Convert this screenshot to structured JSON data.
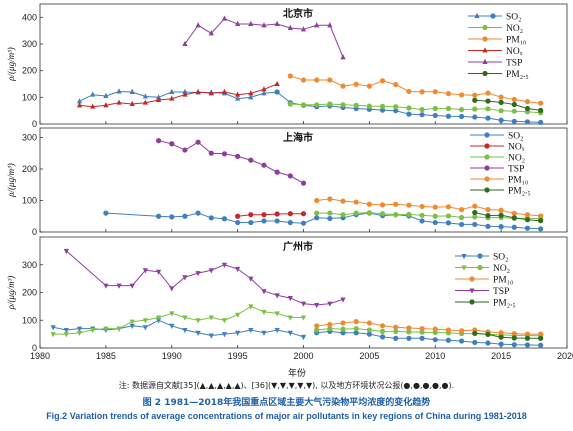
{
  "figure": {
    "xlabel": "年份",
    "note": "注: 数据源自文献[35](▲,▲,▲,▲,▲)、[36](▼,▼,▼,▼,▼), 以及地方环境状况公报(●,●,●,●,●).",
    "caption_zh": "图 2 1981—2018年我国重点区域主要大气污染物平均浓度的变化趋势",
    "caption_en": "Fig.2 Variation trends of average concentrations of major air pollutants in key regions of China during 1981-2018",
    "ylabel": "ρ/(μg/m³)",
    "x_ticks": [
      "1980",
      "1985",
      "1990",
      "1995",
      "2000",
      "2005",
      "2010",
      "2015",
      "2020"
    ],
    "colors": {
      "SO2": "#3f7fbf",
      "NOx": "#c62828",
      "NO2": "#7bbf44",
      "PM10": "#ef8a32",
      "TSP": "#8e3f9e",
      "PM25": "#2e6b1f"
    }
  },
  "chart_data": [
    {
      "type": "line",
      "title": "北京市",
      "xlim": [
        1980,
        2020
      ],
      "ylim": [
        0,
        450
      ],
      "y_ticks": [
        "0",
        "100",
        "200",
        "300",
        "400"
      ],
      "legend": [
        "SO₂",
        "NO₂",
        "PM₁₀",
        "NOₓ",
        "TSP",
        "PM₂.₅"
      ],
      "series": [
        {
          "name": "SO₂",
          "color": "#3f7fbf",
          "marker": "triangle-up",
          "x": [
            1983,
            1984,
            1985,
            1986,
            1987,
            1988,
            1989,
            1990,
            1991,
            1992,
            1993,
            1994,
            1995,
            1996,
            1997,
            1998
          ],
          "y": [
            85,
            110,
            105,
            122,
            120,
            103,
            100,
            120,
            120,
            118,
            118,
            115,
            95,
            100,
            115,
            120
          ]
        },
        {
          "name": "SO₂",
          "color": "#3f7fbf",
          "marker": "circle",
          "x": [
            1998,
            1999,
            2000,
            2001,
            2002,
            2003,
            2004,
            2005,
            2006,
            2007,
            2008,
            2009,
            2010,
            2011,
            2012,
            2013,
            2014,
            2015,
            2016,
            2017,
            2018
          ],
          "y": [
            120,
            80,
            70,
            65,
            68,
            62,
            58,
            55,
            52,
            50,
            37,
            35,
            32,
            29,
            28,
            26,
            22,
            14,
            10,
            8,
            6
          ]
        },
        {
          "name": "NO₂",
          "color": "#7bbf44",
          "marker": "circle",
          "x": [
            1999,
            2000,
            2001,
            2002,
            2003,
            2004,
            2005,
            2006,
            2007,
            2008,
            2009,
            2010,
            2011,
            2012,
            2013,
            2014,
            2015,
            2016,
            2017,
            2018
          ],
          "y": [
            75,
            72,
            72,
            75,
            72,
            70,
            67,
            66,
            65,
            60,
            54,
            58,
            58,
            54,
            56,
            57,
            50,
            48,
            46,
            42
          ]
        },
        {
          "name": "PM₁₀",
          "color": "#ef8a32",
          "marker": "circle",
          "x": [
            1999,
            2000,
            2001,
            2002,
            2003,
            2004,
            2005,
            2006,
            2007,
            2008,
            2009,
            2010,
            2011,
            2012,
            2013,
            2014,
            2015,
            2016,
            2017,
            2018
          ],
          "y": [
            180,
            165,
            165,
            165,
            142,
            149,
            142,
            162,
            148,
            122,
            121,
            121,
            114,
            109,
            108,
            116,
            101,
            92,
            84,
            78
          ]
        },
        {
          "name": "NOₓ",
          "color": "#c62828",
          "marker": "triangle-up",
          "x": [
            1983,
            1984,
            1985,
            1986,
            1987,
            1988,
            1989,
            1990,
            1991,
            1992,
            1993,
            1994,
            1995,
            1996,
            1997,
            1998
          ],
          "y": [
            70,
            65,
            70,
            80,
            75,
            80,
            90,
            95,
            110,
            120,
            115,
            120,
            110,
            115,
            130,
            150
          ]
        },
        {
          "name": "TSP",
          "color": "#8e3f9e",
          "marker": "triangle-up",
          "x": [
            1991,
            1992,
            1993,
            1994,
            1995,
            1996,
            1997,
            1998,
            1999,
            2000,
            2001,
            2002,
            2003
          ],
          "y": [
            300,
            370,
            340,
            395,
            375,
            375,
            370,
            375,
            360,
            355,
            370,
            370,
            250
          ]
        },
        {
          "name": "PM₂.₅",
          "color": "#2e6b1f",
          "marker": "circle",
          "x": [
            2013,
            2014,
            2015,
            2016,
            2017,
            2018
          ],
          "y": [
            89,
            86,
            81,
            73,
            58,
            51
          ]
        }
      ]
    },
    {
      "type": "line",
      "title": "上海市",
      "xlim": [
        1980,
        2020
      ],
      "ylim": [
        0,
        330
      ],
      "y_ticks": [
        "0",
        "100",
        "200",
        "300"
      ],
      "legend": [
        "SO₂",
        "NOₓ",
        "NO₂",
        "TSP",
        "PM₁₀",
        "PM₂.₅"
      ],
      "series": [
        {
          "name": "SO₂",
          "color": "#3f7fbf",
          "marker": "circle",
          "x": [
            1985,
            1989,
            1990,
            1991,
            1992,
            1993,
            1994,
            1995,
            1996,
            1997,
            1998,
            1999,
            2000,
            2001,
            2002,
            2003,
            2004,
            2005,
            2006,
            2007,
            2008,
            2009,
            2010,
            2011,
            2012,
            2013,
            2014,
            2015,
            2016,
            2017,
            2018
          ],
          "y": [
            60,
            50,
            48,
            50,
            60,
            45,
            42,
            30,
            30,
            35,
            35,
            30,
            28,
            45,
            43,
            45,
            55,
            60,
            52,
            55,
            51,
            35,
            30,
            29,
            24,
            24,
            18,
            17,
            15,
            12,
            10
          ]
        },
        {
          "name": "NOₓ",
          "color": "#c62828",
          "marker": "circle",
          "x": [
            1995,
            1996,
            1997,
            1998,
            1999,
            2000
          ],
          "y": [
            50,
            55,
            55,
            57,
            58,
            58
          ]
        },
        {
          "name": "NO₂",
          "color": "#7bbf44",
          "marker": "circle",
          "x": [
            2001,
            2002,
            2003,
            2004,
            2005,
            2006,
            2007,
            2008,
            2009,
            2010,
            2011,
            2012,
            2013,
            2014,
            2015,
            2016,
            2017,
            2018
          ],
          "y": [
            60,
            60,
            55,
            60,
            61,
            58,
            55,
            56,
            53,
            50,
            51,
            46,
            48,
            45,
            46,
            43,
            44,
            42
          ]
        },
        {
          "name": "TSP",
          "color": "#8e3f9e",
          "marker": "circle",
          "x": [
            1989,
            1990,
            1991,
            1992,
            1993,
            1994,
            1995,
            1996,
            1997,
            1998,
            1999,
            2000
          ],
          "y": [
            290,
            280,
            260,
            285,
            250,
            248,
            240,
            228,
            212,
            190,
            178,
            155
          ]
        },
        {
          "name": "PM₁₀",
          "color": "#ef8a32",
          "marker": "circle",
          "x": [
            2001,
            2002,
            2003,
            2004,
            2005,
            2006,
            2007,
            2008,
            2009,
            2010,
            2011,
            2012,
            2013,
            2014,
            2015,
            2016,
            2017,
            2018
          ],
          "y": [
            100,
            105,
            98,
            95,
            88,
            86,
            88,
            85,
            81,
            79,
            80,
            71,
            82,
            71,
            69,
            59,
            55,
            51
          ]
        },
        {
          "name": "PM₂.₅",
          "color": "#2e6b1f",
          "marker": "circle",
          "x": [
            2013,
            2014,
            2015,
            2016,
            2017,
            2018
          ],
          "y": [
            62,
            52,
            53,
            45,
            39,
            36
          ]
        }
      ]
    },
    {
      "type": "line",
      "title": "广州市",
      "xlim": [
        1980,
        2020
      ],
      "ylim": [
        0,
        400
      ],
      "y_ticks": [
        "0",
        "100",
        "200",
        "300"
      ],
      "legend": [
        "SO₂",
        "NO₂",
        "PM₁₀",
        "TSP",
        "PM₂.₅"
      ],
      "series": [
        {
          "name": "SO₂",
          "color": "#3f7fbf",
          "marker": "triangle-down",
          "x": [
            1981,
            1982,
            1983,
            1984,
            1985,
            1986,
            1987,
            1988,
            1989,
            1990,
            1991,
            1992,
            1993,
            1994,
            1995,
            1996,
            1997,
            1998,
            1999,
            2000
          ],
          "y": [
            75,
            65,
            70,
            70,
            65,
            70,
            80,
            75,
            100,
            80,
            65,
            55,
            45,
            50,
            55,
            65,
            55,
            65,
            55,
            40
          ]
        },
        {
          "name": "SO₂",
          "color": "#3f7fbf",
          "marker": "circle",
          "x": [
            2001,
            2002,
            2003,
            2004,
            2005,
            2006,
            2007,
            2008,
            2009,
            2010,
            2011,
            2012,
            2013,
            2014,
            2015,
            2016,
            2017,
            2018
          ],
          "y": [
            55,
            60,
            55,
            55,
            50,
            40,
            35,
            35,
            35,
            30,
            28,
            25,
            20,
            18,
            14,
            12,
            11,
            10
          ]
        },
        {
          "name": "NO₂",
          "color": "#7bbf44",
          "marker": "triangle-down",
          "x": [
            1981,
            1982,
            1983,
            1984,
            1985,
            1986,
            1987,
            1988,
            1989,
            1990,
            1991,
            1992,
            1993,
            1994,
            1995,
            1996,
            1997,
            1998,
            1999,
            2000
          ],
          "y": [
            50,
            50,
            55,
            65,
            70,
            70,
            95,
            100,
            110,
            125,
            110,
            100,
            110,
            100,
            120,
            150,
            130,
            125,
            110,
            110
          ]
        },
        {
          "name": "NO₂",
          "color": "#7bbf44",
          "marker": "circle",
          "x": [
            2001,
            2002,
            2003,
            2004,
            2005,
            2006,
            2007,
            2008,
            2009,
            2010,
            2011,
            2012,
            2013,
            2014,
            2015,
            2016,
            2017,
            2018
          ],
          "y": [
            65,
            70,
            68,
            70,
            65,
            60,
            60,
            58,
            57,
            56,
            55,
            52,
            52,
            50,
            47,
            46,
            45,
            44
          ]
        },
        {
          "name": "PM₁₀",
          "color": "#ef8a32",
          "marker": "circle",
          "x": [
            2001,
            2002,
            2003,
            2004,
            2005,
            2006,
            2007,
            2008,
            2009,
            2010,
            2011,
            2012,
            2013,
            2014,
            2015,
            2016,
            2017,
            2018
          ],
          "y": [
            80,
            85,
            90,
            95,
            90,
            80,
            75,
            72,
            70,
            68,
            65,
            62,
            65,
            58,
            55,
            52,
            50,
            50
          ]
        },
        {
          "name": "TSP",
          "color": "#8e3f9e",
          "marker": "triangle-down",
          "x": [
            1982,
            1985,
            1986,
            1987,
            1988,
            1989,
            1990,
            1991,
            1992,
            1993,
            1994,
            1995,
            1996,
            1997,
            1998,
            1999,
            2000,
            2001,
            2002,
            2003
          ],
          "y": [
            350,
            225,
            225,
            225,
            280,
            275,
            215,
            255,
            270,
            280,
            300,
            285,
            250,
            205,
            190,
            180,
            160,
            155,
            160,
            175
          ]
        },
        {
          "name": "PM₂.₅",
          "color": "#2e6b1f",
          "marker": "circle",
          "x": [
            2013,
            2014,
            2015,
            2016,
            2017,
            2018
          ],
          "y": [
            53,
            49,
            39,
            36,
            35,
            35
          ]
        }
      ]
    }
  ]
}
